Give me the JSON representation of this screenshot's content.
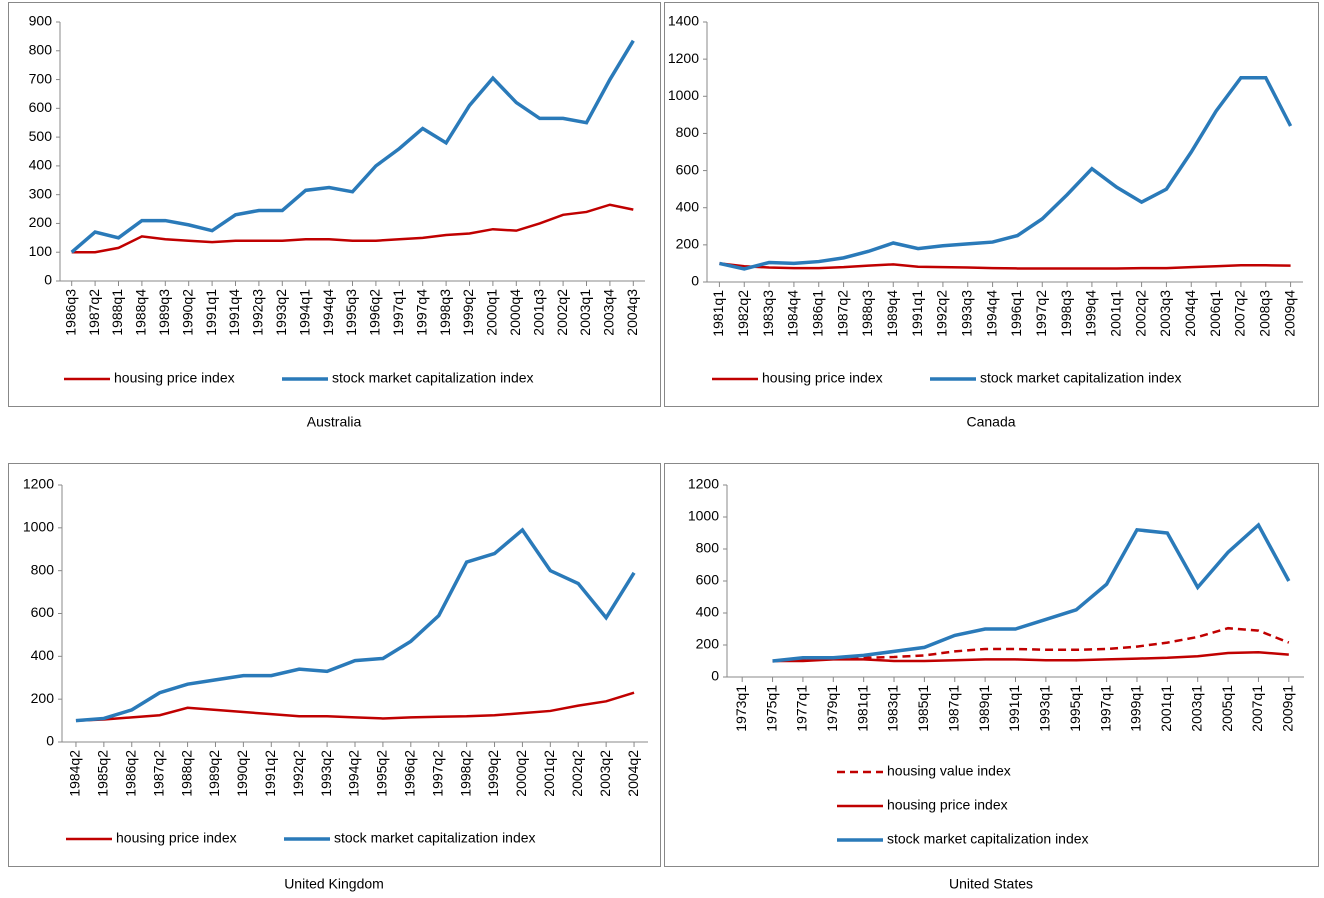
{
  "chart_data": [
    {
      "type": "line",
      "title": "Australia",
      "categories": [
        "1986q3",
        "1987q2",
        "1988q1",
        "1988q4",
        "1989q3",
        "1990q2",
        "1991q1",
        "1991q4",
        "1992q3",
        "1993q2",
        "1994q1",
        "1994q4",
        "1995q3",
        "1996q2",
        "1997q1",
        "1997q4",
        "1998q3",
        "1999q2",
        "2000q1",
        "2000q4",
        "2001q3",
        "2002q2",
        "2003q1",
        "2003q4",
        "2004q3"
      ],
      "series": [
        {
          "name": "housing price index",
          "color": "#c00000",
          "values": [
            100,
            100,
            115,
            155,
            145,
            140,
            135,
            140,
            140,
            140,
            145,
            145,
            140,
            140,
            145,
            150,
            160,
            165,
            180,
            175,
            200,
            230,
            240,
            265,
            248
          ]
        },
        {
          "name": "stock market capitalization index",
          "color": "#2a7ab9",
          "values": [
            100,
            170,
            150,
            210,
            210,
            195,
            175,
            230,
            245,
            245,
            315,
            325,
            310,
            400,
            460,
            530,
            480,
            610,
            705,
            620,
            565,
            565,
            550,
            700,
            835
          ]
        }
      ],
      "ylim": [
        0,
        900
      ],
      "yticks": [
        0,
        100,
        200,
        300,
        400,
        500,
        600,
        700,
        800,
        900
      ],
      "legend": "bottom"
    },
    {
      "type": "line",
      "title": "Canada",
      "categories": [
        "1981q1",
        "1982q2",
        "1983q3",
        "1984q4",
        "1986q1",
        "1987q2",
        "1988q3",
        "1989q4",
        "1991q1",
        "1992q2",
        "1993q3",
        "1994q4",
        "1996q1",
        "1997q2",
        "1998q3",
        "1999q4",
        "2001q1",
        "2002q2",
        "2003q3",
        "2004q4",
        "2006q1",
        "2007q2",
        "2008q3",
        "2009q4"
      ],
      "series": [
        {
          "name": "housing price index",
          "color": "#c00000",
          "values": [
            100,
            85,
            78,
            75,
            75,
            80,
            88,
            95,
            82,
            80,
            78,
            75,
            73,
            73,
            73,
            73,
            73,
            75,
            75,
            80,
            85,
            90,
            90,
            88
          ]
        },
        {
          "name": "stock market capitalization index",
          "color": "#2a7ab9",
          "values": [
            100,
            70,
            105,
            100,
            110,
            130,
            165,
            210,
            180,
            195,
            205,
            215,
            250,
            340,
            470,
            610,
            510,
            430,
            500,
            700,
            920,
            1100,
            1100,
            840
          ]
        }
      ],
      "ylim": [
        0,
        1400
      ],
      "yticks": [
        0,
        200,
        400,
        600,
        800,
        1000,
        1200,
        1400
      ],
      "legend": "bottom"
    },
    {
      "type": "line",
      "title": "United Kingdom",
      "categories": [
        "1984q2",
        "1985q2",
        "1986q2",
        "1987q2",
        "1988q2",
        "1989q2",
        "1990q2",
        "1991q2",
        "1992q2",
        "1993q2",
        "1994q2",
        "1995q2",
        "1996q2",
        "1997q2",
        "1998q2",
        "1999q2",
        "2000q2",
        "2001q2",
        "2002q2",
        "2003q2",
        "2004q2"
      ],
      "series": [
        {
          "name": "housing price index",
          "color": "#c00000",
          "values": [
            100,
            105,
            115,
            125,
            160,
            150,
            140,
            130,
            120,
            120,
            115,
            110,
            115,
            118,
            120,
            125,
            135,
            145,
            170,
            190,
            230
          ]
        },
        {
          "name": "stock market capitalization index",
          "color": "#2a7ab9",
          "values": [
            100,
            110,
            150,
            230,
            270,
            290,
            310,
            310,
            340,
            330,
            380,
            390,
            470,
            590,
            840,
            880,
            990,
            800,
            740,
            580,
            790
          ]
        }
      ],
      "ylim": [
        0,
        1200
      ],
      "yticks": [
        0,
        200,
        400,
        600,
        800,
        1000,
        1200
      ],
      "legend": "bottom"
    },
    {
      "type": "line",
      "title": "United States",
      "categories": [
        "1973q1",
        "1975q1",
        "1977q1",
        "1979q1",
        "1981q1",
        "1983q1",
        "1985q1",
        "1987q1",
        "1989q1",
        "1991q1",
        "1993q1",
        "1995q1",
        "1997q1",
        "1999q1",
        "2001q1",
        "2003q1",
        "2005q1",
        "2007q1",
        "2009q1"
      ],
      "series": [
        {
          "name": "housing value index",
          "color": "#c00000",
          "line_style": "dashed",
          "values": [
            null,
            100,
            105,
            115,
            120,
            125,
            135,
            160,
            175,
            175,
            170,
            170,
            175,
            190,
            215,
            250,
            305,
            290,
            215
          ]
        },
        {
          "name": "housing price index",
          "color": "#c00000",
          "values": [
            null,
            100,
            100,
            110,
            110,
            100,
            100,
            105,
            110,
            110,
            105,
            105,
            110,
            115,
            120,
            130,
            150,
            155,
            140
          ]
        },
        {
          "name": "stock market capitalization index",
          "color": "#2a7ab9",
          "values": [
            null,
            100,
            120,
            120,
            135,
            160,
            185,
            260,
            300,
            300,
            360,
            420,
            580,
            920,
            900,
            560,
            780,
            950,
            600
          ]
        }
      ],
      "ylim": [
        0,
        1200
      ],
      "yticks": [
        0,
        200,
        400,
        600,
        800,
        1000,
        1200
      ],
      "legend": "bottom-stacked"
    }
  ]
}
